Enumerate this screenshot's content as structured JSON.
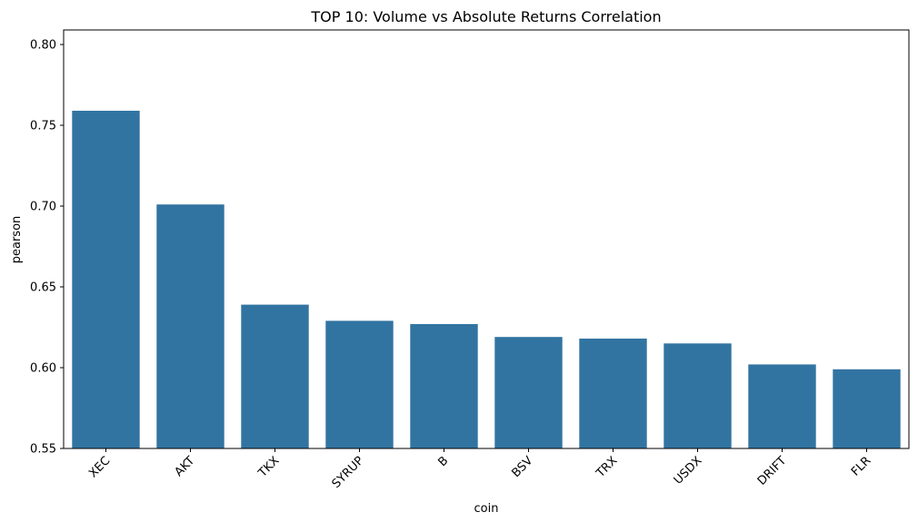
{
  "chart_data": {
    "type": "bar",
    "title": "TOP 10: Volume vs Absolute Returns Correlation",
    "xlabel": "coin",
    "ylabel": "pearson",
    "categories": [
      "XEC",
      "AKT",
      "TKX",
      "SYRUP",
      "B",
      "BSV",
      "TRX",
      "USDX",
      "DRIFT",
      "FLR"
    ],
    "values": [
      0.759,
      0.701,
      0.639,
      0.629,
      0.627,
      0.619,
      0.618,
      0.615,
      0.602,
      0.599
    ],
    "ylim": [
      0.55,
      0.809
    ],
    "yticks": [
      0.55,
      0.6,
      0.65,
      0.7,
      0.75,
      0.8
    ],
    "ytick_labels": [
      "0.55",
      "0.60",
      "0.65",
      "0.70",
      "0.75",
      "0.80"
    ],
    "bar_color": "#3274a1",
    "grid": false,
    "xtick_rotation": 45
  }
}
